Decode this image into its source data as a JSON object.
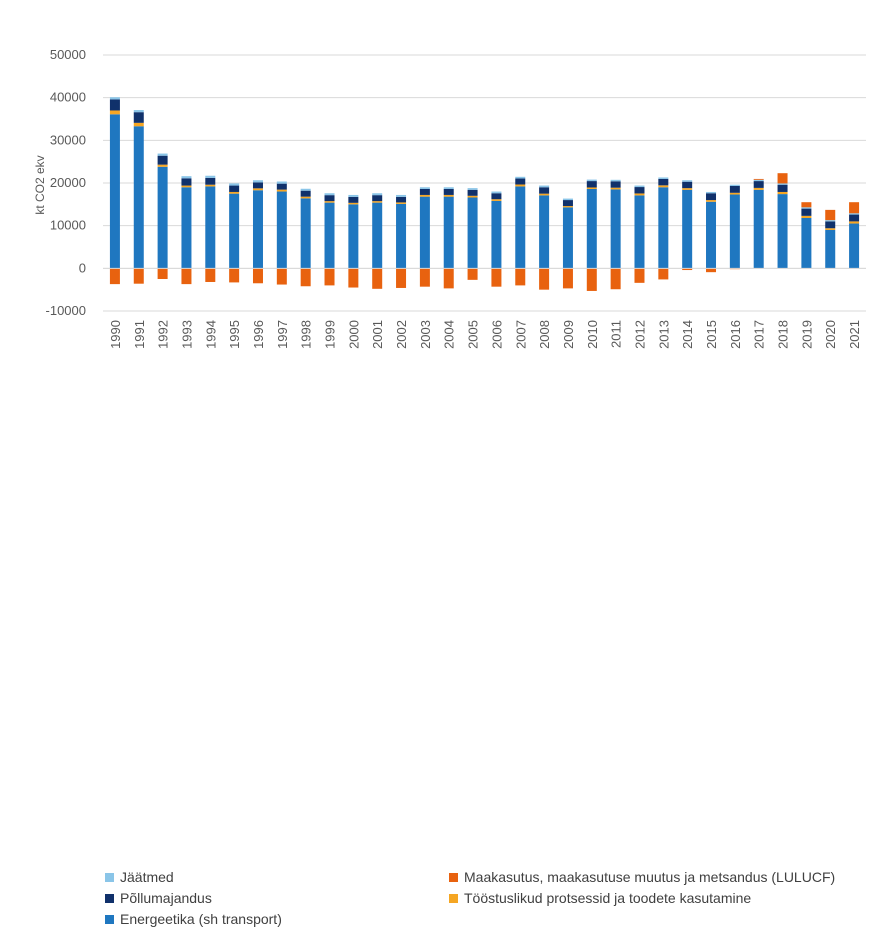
{
  "chart_data": {
    "type": "bar",
    "stacked": true,
    "ylabel": "kt CO2 ekv",
    "ylim": [
      -10000,
      50000
    ],
    "yticks": [
      -10000,
      0,
      10000,
      20000,
      30000,
      40000,
      50000
    ],
    "ytick_labels": [
      "-10000",
      "0",
      "10000",
      "20000",
      "30000",
      "40000",
      "50000"
    ],
    "grid": true,
    "legend_position": "bottom",
    "categories": [
      "1990",
      "1991",
      "1992",
      "1993",
      "1994",
      "1995",
      "1996",
      "1997",
      "1998",
      "1999",
      "2000",
      "2001",
      "2002",
      "2003",
      "2004",
      "2005",
      "2006",
      "2007",
      "2008",
      "2009",
      "2010",
      "2011",
      "2012",
      "2013",
      "2014",
      "2015",
      "2016",
      "2017",
      "2018",
      "2019",
      "2020",
      "2021"
    ],
    "series": [
      {
        "key": "energy",
        "name": "Energeetika (sh transport)",
        "color": "#1f77c0",
        "values": [
          36100,
          33300,
          23800,
          19000,
          19200,
          17500,
          18300,
          18000,
          16400,
          15400,
          15000,
          15400,
          15100,
          16800,
          16800,
          16600,
          15800,
          19200,
          17100,
          14300,
          18600,
          18500,
          17100,
          19000,
          18400,
          15600,
          17300,
          18400,
          17400,
          11800,
          9000,
          10500
        ]
      },
      {
        "key": "industry",
        "name": "Tööstuslikud protsessid ja toodete kasutamine",
        "color": "#f5a623",
        "values": [
          900,
          800,
          500,
          400,
          400,
          400,
          450,
          450,
          400,
          350,
          350,
          350,
          350,
          400,
          400,
          400,
          400,
          450,
          400,
          300,
          350,
          400,
          450,
          450,
          400,
          400,
          400,
          450,
          500,
          500,
          400,
          500
        ]
      },
      {
        "key": "agriculture",
        "name": "Põllumajandus",
        "color": "#10316b",
        "values": [
          2600,
          2500,
          2100,
          1700,
          1600,
          1500,
          1400,
          1400,
          1400,
          1400,
          1400,
          1400,
          1300,
          1400,
          1400,
          1400,
          1400,
          1400,
          1500,
          1400,
          1500,
          1500,
          1500,
          1500,
          1500,
          1600,
          1600,
          1600,
          1700,
          1700,
          1600,
          1600
        ]
      },
      {
        "key": "waste",
        "name": "Jäätmed",
        "color": "#8ac5e8",
        "values": [
          500,
          500,
          500,
          500,
          500,
          500,
          500,
          500,
          450,
          450,
          450,
          450,
          450,
          400,
          400,
          400,
          400,
          400,
          400,
          350,
          350,
          350,
          350,
          350,
          350,
          300,
          300,
          300,
          300,
          300,
          300,
          300
        ]
      },
      {
        "key": "lulucf",
        "name": "Maakasutus, maakasutuse muutus ja metsandus (LULUCF)",
        "color": "#e8620f",
        "values": [
          -3700,
          -3600,
          -2500,
          -3700,
          -3200,
          -3300,
          -3500,
          -3800,
          -4200,
          -4000,
          -4500,
          -4800,
          -4600,
          -4300,
          -4700,
          -2700,
          -4300,
          -4000,
          -5000,
          -4700,
          -5300,
          -4900,
          -3400,
          -2600,
          -400,
          -900,
          -200,
          200,
          2400,
          1200,
          2400,
          2600
        ]
      }
    ]
  },
  "legend": {
    "left": [
      {
        "key": "waste",
        "label": "Jäätmed",
        "color": "#8ac5e8"
      },
      {
        "key": "agriculture",
        "label": "Põllumajandus",
        "color": "#10316b"
      },
      {
        "key": "energy",
        "label": "Energeetika (sh transport)",
        "color": "#1f77c0"
      }
    ],
    "right": [
      {
        "key": "lulucf",
        "label": "Maakasutus, maakasutuse muutus ja metsandus (LULUCF)",
        "color": "#e8620f"
      },
      {
        "key": "industry",
        "label": "Tööstuslikud protsessid ja toodete kasutamine",
        "color": "#f5a623"
      }
    ]
  }
}
